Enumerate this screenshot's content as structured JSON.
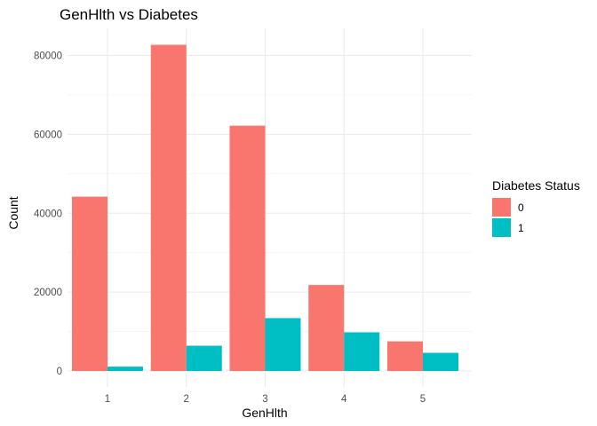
{
  "chart_data": {
    "type": "bar",
    "title": "GenHlth vs Diabetes",
    "xlabel": "GenHlth",
    "ylabel": "Count",
    "categories": [
      "1",
      "2",
      "3",
      "4",
      "5"
    ],
    "series": [
      {
        "name": "0",
        "color": "#F8766D",
        "values": [
          44200,
          82700,
          62200,
          21800,
          7500
        ]
      },
      {
        "name": "1",
        "color": "#00BFC4",
        "values": [
          1100,
          6400,
          13400,
          9800,
          4600
        ]
      }
    ],
    "ylim": [
      0,
      87000
    ],
    "yticks": [
      0,
      20000,
      40000,
      60000,
      80000
    ],
    "ytick_labels": [
      "0",
      "20000",
      "40000",
      "60000",
      "80000"
    ],
    "grid": true,
    "legend": {
      "title": "Diabetes Status",
      "position": "right"
    }
  }
}
